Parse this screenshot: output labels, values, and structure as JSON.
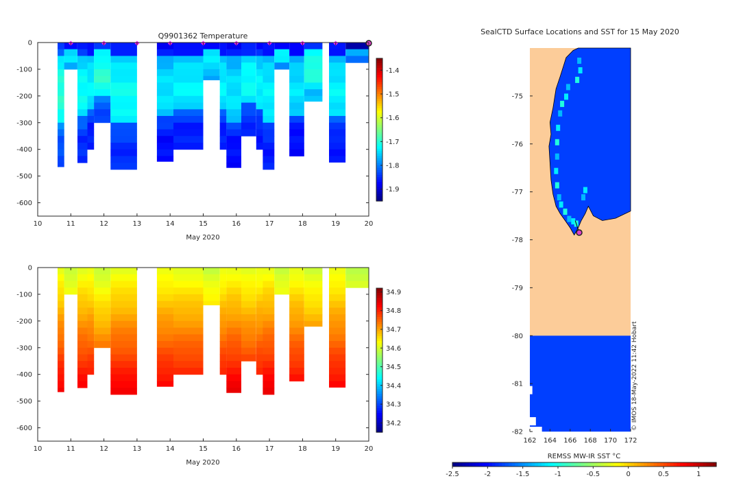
{
  "chart_data": [
    {
      "type": "heatmap",
      "title": "Q9901362  Temperature",
      "xlabel": "May 2020",
      "ylabel": "",
      "xlim": [
        10,
        20
      ],
      "ylim": [
        -650,
        0
      ],
      "xticks": [
        "10",
        "11",
        "12",
        "13",
        "14",
        "15",
        "16",
        "17",
        "18",
        "19",
        "20"
      ],
      "yticks": [
        "0",
        "-100",
        "-200",
        "-300",
        "-400",
        "-500",
        "-600"
      ],
      "colorbar": {
        "min": -1.95,
        "max": -1.35,
        "ticks": [
          "-1.4",
          "-1.5",
          "-1.6",
          "-1.7",
          "-1.8",
          "-1.9"
        ],
        "colormap": "jet"
      },
      "profile_markers_x": [
        11,
        12,
        13,
        14,
        15,
        16,
        17,
        18,
        19
      ],
      "current_marker_x": 20,
      "profiles": [
        {
          "x0": 10.6,
          "x1": 10.8,
          "depth": 465,
          "t": -1.76
        },
        {
          "x0": 10.8,
          "x1": 11.2,
          "depth": 110,
          "t": -1.79
        },
        {
          "x0": 11.2,
          "x1": 11.5,
          "depth": 450,
          "t": -1.78
        },
        {
          "x0": 11.5,
          "x1": 11.7,
          "depth": 400,
          "t": -1.79
        },
        {
          "x0": 11.7,
          "x1": 12.2,
          "depth": 310,
          "t": -1.76
        },
        {
          "x0": 12.2,
          "x1": 13.0,
          "depth": 475,
          "t": -1.78
        },
        {
          "x0": 13.6,
          "x1": 14.1,
          "depth": 445,
          "t": -1.8
        },
        {
          "x0": 14.1,
          "x1": 15.0,
          "depth": 400,
          "t": -1.79
        },
        {
          "x0": 15.0,
          "x1": 15.5,
          "depth": 140,
          "t": -1.79
        },
        {
          "x0": 15.5,
          "x1": 15.7,
          "depth": 400,
          "t": -1.79
        },
        {
          "x0": 15.7,
          "x1": 16.15,
          "depth": 468,
          "t": -1.8
        },
        {
          "x0": 16.15,
          "x1": 16.6,
          "depth": 350,
          "t": -1.78
        },
        {
          "x0": 16.6,
          "x1": 16.8,
          "depth": 400,
          "t": -1.79
        },
        {
          "x0": 16.8,
          "x1": 17.15,
          "depth": 480,
          "t": -1.79
        },
        {
          "x0": 17.15,
          "x1": 17.6,
          "depth": 105,
          "t": -1.79
        },
        {
          "x0": 17.6,
          "x1": 18.05,
          "depth": 435,
          "t": -1.8
        },
        {
          "x0": 18.05,
          "x1": 18.6,
          "depth": 220,
          "t": -1.76
        },
        {
          "x0": 18.8,
          "x1": 19.3,
          "depth": 448,
          "t": -1.79
        },
        {
          "x0": 19.3,
          "x1": 20.0,
          "depth": 85,
          "t": -1.84
        }
      ]
    },
    {
      "type": "heatmap",
      "title": "",
      "xlabel": "May 2020",
      "ylabel": "",
      "xlim": [
        10,
        20
      ],
      "ylim": [
        -650,
        0
      ],
      "xticks": [
        "10",
        "11",
        "12",
        "13",
        "14",
        "15",
        "16",
        "17",
        "18",
        "19",
        "20"
      ],
      "yticks": [
        "0",
        "-100",
        "-200",
        "-300",
        "-400",
        "-500",
        "-600"
      ],
      "colorbar": {
        "min": 34.15,
        "max": 34.92,
        "ticks": [
          "34.9",
          "34.8",
          "34.7",
          "34.6",
          "34.5",
          "34.4",
          "34.3",
          "34.2"
        ],
        "colormap": "jet"
      },
      "profiles": [
        {
          "x0": 10.6,
          "x1": 10.8,
          "depth": 465,
          "s": 34.75
        },
        {
          "x0": 10.8,
          "x1": 11.2,
          "depth": 110,
          "s": 34.66
        },
        {
          "x0": 11.2,
          "x1": 11.5,
          "depth": 450,
          "s": 34.75
        },
        {
          "x0": 11.5,
          "x1": 11.7,
          "depth": 400,
          "s": 34.75
        },
        {
          "x0": 11.7,
          "x1": 12.2,
          "depth": 310,
          "s": 34.67
        },
        {
          "x0": 12.2,
          "x1": 13.0,
          "depth": 475,
          "s": 34.75
        },
        {
          "x0": 13.6,
          "x1": 14.1,
          "depth": 445,
          "s": 34.75
        },
        {
          "x0": 14.1,
          "x1": 15.0,
          "depth": 400,
          "s": 34.74
        },
        {
          "x0": 15.0,
          "x1": 15.5,
          "depth": 140,
          "s": 34.66
        },
        {
          "x0": 15.5,
          "x1": 15.7,
          "depth": 400,
          "s": 34.75
        },
        {
          "x0": 15.7,
          "x1": 16.15,
          "depth": 468,
          "s": 34.77
        },
        {
          "x0": 16.15,
          "x1": 16.6,
          "depth": 350,
          "s": 34.73
        },
        {
          "x0": 16.6,
          "x1": 16.8,
          "depth": 400,
          "s": 34.75
        },
        {
          "x0": 16.8,
          "x1": 17.15,
          "depth": 480,
          "s": 34.77
        },
        {
          "x0": 17.15,
          "x1": 17.6,
          "depth": 105,
          "s": 34.65
        },
        {
          "x0": 17.6,
          "x1": 18.05,
          "depth": 435,
          "s": 34.75
        },
        {
          "x0": 18.05,
          "x1": 18.6,
          "depth": 220,
          "s": 34.69
        },
        {
          "x0": 18.8,
          "x1": 19.3,
          "depth": 448,
          "s": 34.75
        },
        {
          "x0": 19.3,
          "x1": 20.0,
          "depth": 85,
          "s": 34.64
        }
      ]
    },
    {
      "type": "heatmap",
      "title": "SealCTD Surface Locations and SST for 15 May 2020",
      "xlabel": "",
      "ylabel": "",
      "xlim": [
        162,
        172
      ],
      "ylim": [
        -82,
        -74
      ],
      "xticks": [
        "162",
        "164",
        "166",
        "168",
        "170",
        "172"
      ],
      "yticks": [
        "-75",
        "-76",
        "-77",
        "-78",
        "-79",
        "-80",
        "-81",
        "-82"
      ],
      "colorbar": {
        "label": "REMSS MW-IR SST °C",
        "min": -2.5,
        "max": 1.25,
        "ticks": [
          "-2.5",
          "-2",
          "-1.5",
          "-1",
          "-0.5",
          "0",
          "0.5",
          "1"
        ],
        "colormap": "jet"
      },
      "sst_value_ocean": -1.8,
      "seal_position": {
        "lon": 166.9,
        "lat": -77.85
      },
      "credit": "© IMOS 18-May-2022 11:42 Hobart"
    }
  ],
  "colors": {
    "land": "#fccc99",
    "ocean_sst": "#0a73e6",
    "marker": "#ff20ff",
    "current_marker": "#e040c8"
  }
}
